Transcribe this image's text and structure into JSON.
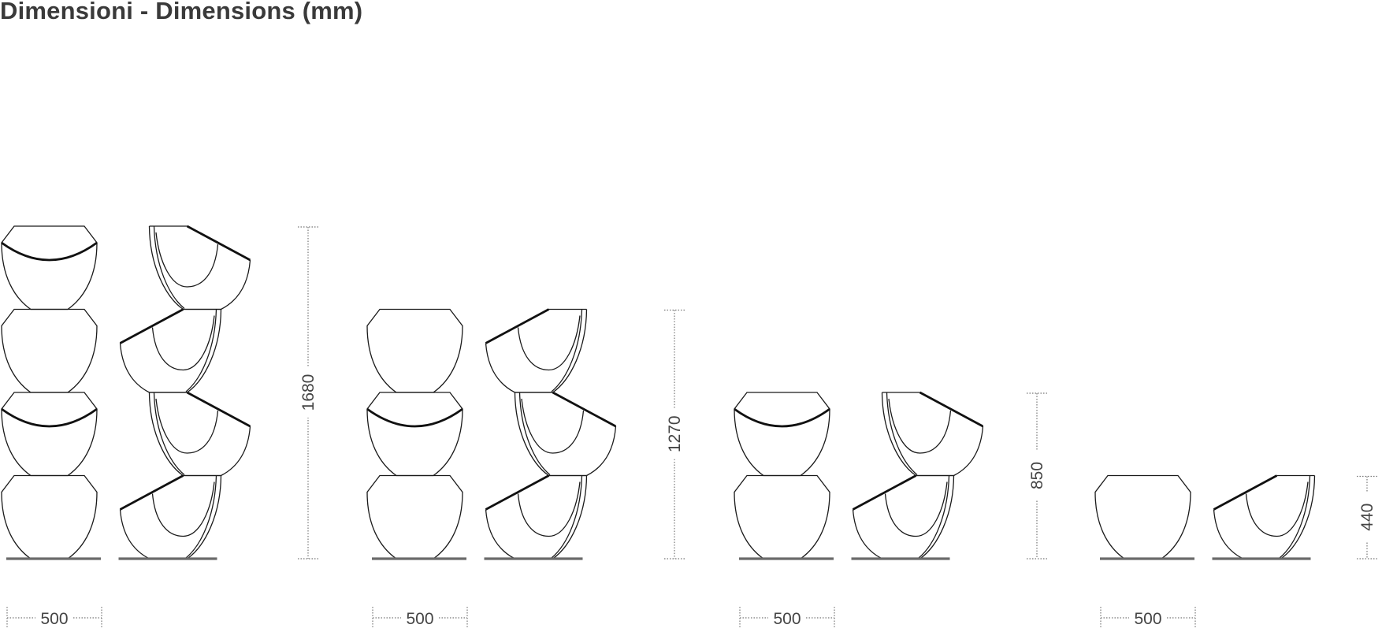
{
  "title": "Dimensioni - Dimensions (mm)",
  "units": "mm",
  "configurations": [
    {
      "modules": 4,
      "height_label": "1680",
      "width_label": "500"
    },
    {
      "modules": 3,
      "height_label": "1270",
      "width_label": "500"
    },
    {
      "modules": 2,
      "height_label": "850",
      "width_label": "500"
    },
    {
      "modules": 1,
      "height_label": "440",
      "width_label": "500"
    }
  ],
  "colors": {
    "line": "#1a1a1a",
    "base": "#6a6a6a",
    "dimension": "#777777",
    "title": "#3a3a3a"
  }
}
